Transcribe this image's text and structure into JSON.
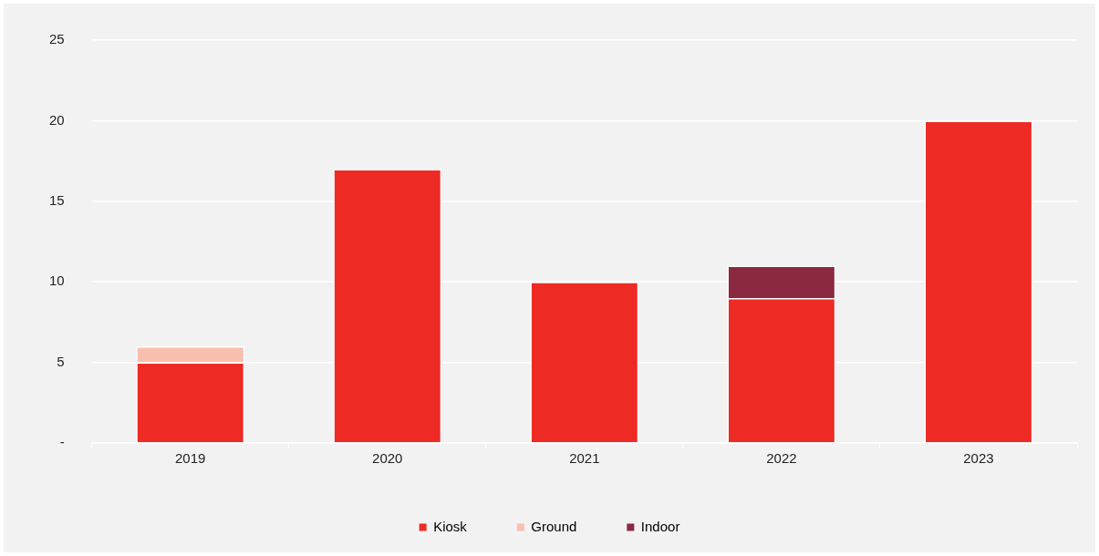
{
  "chart_data": {
    "type": "bar",
    "stacked": true,
    "categories": [
      "2019",
      "2020",
      "2021",
      "2022",
      "2023"
    ],
    "series": [
      {
        "name": "Kiosk",
        "color": "#ee2a24",
        "values": [
          5,
          17,
          10,
          9,
          20
        ]
      },
      {
        "name": "Ground",
        "color": "#f9bfae",
        "values": [
          1,
          null,
          null,
          null,
          null
        ]
      },
      {
        "name": "Indoor",
        "color": "#8b2940",
        "values": [
          null,
          null,
          null,
          2,
          null
        ]
      }
    ],
    "ylim": [
      0,
      25
    ],
    "yticks": [
      {
        "value": 0,
        "label": "-"
      },
      5,
      10,
      15,
      20,
      25
    ],
    "grid": "y",
    "legend": "bottom"
  }
}
